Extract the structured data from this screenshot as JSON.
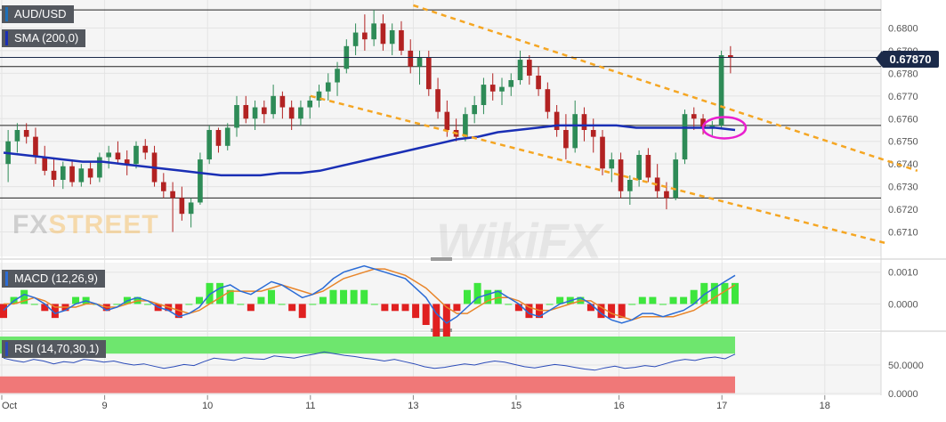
{
  "chart_data": [
    {
      "type": "candlestick",
      "title": "AUD/USD",
      "indicator": "SMA (200,0)",
      "current_price": "0.67870",
      "ylim": [
        0.67,
        0.681
      ],
      "yticks": [
        "0.6800",
        "0.6790",
        "0.6780",
        "0.6770",
        "0.6760",
        "0.6750",
        "0.6740",
        "0.6730",
        "0.6720",
        "0.6710"
      ],
      "x_tick_labels": [
        "Oct",
        "9",
        "10",
        "11",
        "13",
        "15",
        "16",
        "17",
        "18"
      ],
      "x_tick_days": [
        8,
        9,
        10,
        11,
        12,
        13,
        14,
        15,
        16
      ],
      "candles": [
        [
          0.674,
          0.6755,
          0.6732,
          0.675
        ],
        [
          0.675,
          0.6758,
          0.6745,
          0.6755
        ],
        [
          0.6755,
          0.6758,
          0.6749,
          0.6752
        ],
        [
          0.6752,
          0.6756,
          0.674,
          0.6743
        ],
        [
          0.6743,
          0.6748,
          0.6735,
          0.6737
        ],
        [
          0.6737,
          0.6742,
          0.673,
          0.6733
        ],
        [
          0.6733,
          0.6741,
          0.6729,
          0.6739
        ],
        [
          0.6739,
          0.6742,
          0.673,
          0.6732
        ],
        [
          0.6732,
          0.674,
          0.673,
          0.6738
        ],
        [
          0.6738,
          0.6741,
          0.6731,
          0.6734
        ],
        [
          0.6734,
          0.6745,
          0.6732,
          0.6743
        ],
        [
          0.6743,
          0.6748,
          0.6738,
          0.6745
        ],
        [
          0.6745,
          0.675,
          0.674,
          0.6742
        ],
        [
          0.6742,
          0.6746,
          0.6735,
          0.674
        ],
        [
          0.674,
          0.675,
          0.6738,
          0.6748
        ],
        [
          0.6748,
          0.6751,
          0.6742,
          0.6745
        ],
        [
          0.6745,
          0.6748,
          0.673,
          0.6732
        ],
        [
          0.6732,
          0.6736,
          0.6725,
          0.6728
        ],
        [
          0.6728,
          0.6732,
          0.671,
          0.6725
        ],
        [
          0.6725,
          0.673,
          0.6715,
          0.6718
        ],
        [
          0.6718,
          0.6725,
          0.6712,
          0.6723
        ],
        [
          0.6723,
          0.6745,
          0.6722,
          0.6742
        ],
        [
          0.6742,
          0.6757,
          0.674,
          0.6755
        ],
        [
          0.6755,
          0.6756,
          0.6745,
          0.6748
        ],
        [
          0.6748,
          0.6758,
          0.6746,
          0.6756
        ],
        [
          0.6756,
          0.677,
          0.6752,
          0.6766
        ],
        [
          0.6766,
          0.677,
          0.6758,
          0.676
        ],
        [
          0.676,
          0.6768,
          0.6755,
          0.6765
        ],
        [
          0.6765,
          0.6768,
          0.6758,
          0.6762
        ],
        [
          0.6762,
          0.6775,
          0.676,
          0.677
        ],
        [
          0.677,
          0.6772,
          0.676,
          0.6765
        ],
        [
          0.6765,
          0.6768,
          0.6755,
          0.676
        ],
        [
          0.676,
          0.6768,
          0.6757,
          0.6765
        ],
        [
          0.6765,
          0.677,
          0.676,
          0.6768
        ],
        [
          0.6768,
          0.6775,
          0.6765,
          0.6772
        ],
        [
          0.6772,
          0.678,
          0.6768,
          0.6776
        ],
        [
          0.6776,
          0.6785,
          0.677,
          0.6782
        ],
        [
          0.6782,
          0.6795,
          0.678,
          0.6792
        ],
        [
          0.6792,
          0.6802,
          0.6788,
          0.6798
        ],
        [
          0.6798,
          0.6806,
          0.679,
          0.6795
        ],
        [
          0.6795,
          0.6808,
          0.6792,
          0.6802
        ],
        [
          0.6802,
          0.6806,
          0.679,
          0.6793
        ],
        [
          0.6793,
          0.6802,
          0.6788,
          0.6799
        ],
        [
          0.6799,
          0.6803,
          0.6788,
          0.679
        ],
        [
          0.679,
          0.6795,
          0.678,
          0.6783
        ],
        [
          0.6783,
          0.679,
          0.6775,
          0.6787
        ],
        [
          0.6787,
          0.679,
          0.677,
          0.6773
        ],
        [
          0.6773,
          0.6778,
          0.676,
          0.6763
        ],
        [
          0.6763,
          0.6768,
          0.6752,
          0.6755
        ],
        [
          0.6755,
          0.676,
          0.675,
          0.6752
        ],
        [
          0.6752,
          0.6765,
          0.675,
          0.6762
        ],
        [
          0.6762,
          0.677,
          0.6758,
          0.6766
        ],
        [
          0.6766,
          0.6778,
          0.6762,
          0.6775
        ],
        [
          0.6775,
          0.678,
          0.6768,
          0.6772
        ],
        [
          0.6772,
          0.6778,
          0.6766,
          0.6774
        ],
        [
          0.6774,
          0.678,
          0.677,
          0.6777
        ],
        [
          0.6777,
          0.679,
          0.6775,
          0.6786
        ],
        [
          0.6786,
          0.6788,
          0.6775,
          0.6779
        ],
        [
          0.6779,
          0.6783,
          0.677,
          0.6773
        ],
        [
          0.6773,
          0.6776,
          0.676,
          0.6763
        ],
        [
          0.6763,
          0.6766,
          0.6752,
          0.6755
        ],
        [
          0.6755,
          0.6762,
          0.6742,
          0.6747
        ],
        [
          0.6747,
          0.6768,
          0.6745,
          0.6762
        ],
        [
          0.6762,
          0.6765,
          0.675,
          0.6755
        ],
        [
          0.6755,
          0.676,
          0.6745,
          0.6752
        ],
        [
          0.6752,
          0.6755,
          0.6735,
          0.6738
        ],
        [
          0.6738,
          0.6745,
          0.6732,
          0.6742
        ],
        [
          0.6742,
          0.6745,
          0.6725,
          0.6728
        ],
        [
          0.6728,
          0.6735,
          0.6722,
          0.6733
        ],
        [
          0.6733,
          0.6746,
          0.673,
          0.6744
        ],
        [
          0.6744,
          0.6747,
          0.6732,
          0.6734
        ],
        [
          0.6734,
          0.674,
          0.6725,
          0.6728
        ],
        [
          0.6728,
          0.6732,
          0.672,
          0.6725
        ],
        [
          0.6725,
          0.6745,
          0.6724,
          0.6742
        ],
        [
          0.6742,
          0.6764,
          0.674,
          0.6762
        ],
        [
          0.6762,
          0.6765,
          0.6755,
          0.676
        ],
        [
          0.676,
          0.6762,
          0.6753,
          0.6756
        ],
        [
          0.6756,
          0.6759,
          0.6752,
          0.6757
        ],
        [
          0.6757,
          0.679,
          0.6756,
          0.6788
        ],
        [
          0.6788,
          0.6792,
          0.678,
          0.6787
        ]
      ],
      "sma_200": [
        0.6745,
        0.6744,
        0.6743,
        0.6742,
        0.6741,
        0.6741,
        0.674,
        0.6739,
        0.6738,
        0.6737,
        0.6736,
        0.6735,
        0.6735,
        0.6735,
        0.6736,
        0.6736,
        0.6737,
        0.6739,
        0.6741,
        0.6743,
        0.6745,
        0.6747,
        0.6749,
        0.6751,
        0.6752,
        0.6754,
        0.6755,
        0.6756,
        0.6757,
        0.6757,
        0.6757,
        0.6757,
        0.6756,
        0.6756,
        0.6756,
        0.6756,
        0.6756,
        0.6755
      ],
      "channel_upper": [
        [
          12.0,
          0.681
        ],
        [
          16.9,
          0.6737
        ]
      ],
      "channel_lower": [
        [
          11.0,
          0.677
        ],
        [
          16.6,
          0.6705
        ]
      ],
      "horizontal_levels": [
        0.6808,
        0.6787,
        0.6783,
        0.6757,
        0.6725
      ]
    },
    {
      "type": "line",
      "title": "MACD (12,26,9)",
      "ylim": [
        -0.0008,
        0.0013
      ],
      "yticks": [
        "0.0010",
        "0.0000"
      ],
      "macd": [
        -0.0002,
        0.0001,
        0.0003,
        0.0002,
        0.0,
        -0.0003,
        -0.0002,
        0.0,
        0.0001,
        0.0,
        -0.0002,
        -0.0001,
        0.0001,
        0.0002,
        0.0001,
        -0.0001,
        -0.0002,
        -0.0004,
        -0.0003,
        -0.0001,
        0.0003,
        0.0005,
        0.0006,
        0.0004,
        0.0003,
        0.0005,
        0.0007,
        0.0006,
        0.0004,
        0.0002,
        0.0003,
        0.0005,
        0.0008,
        0.001,
        0.0011,
        0.0012,
        0.0011,
        0.001,
        0.0009,
        0.0008,
        0.0005,
        0.0002,
        -0.0003,
        -0.0006,
        -0.0004,
        -0.0001,
        0.0002,
        0.0003,
        0.0004,
        0.0002,
        0.0,
        -0.0003,
        -0.0004,
        -0.0002,
        0.0,
        0.0001,
        0.0002,
        0.0,
        -0.0003,
        -0.0005,
        -0.0006,
        -0.0005,
        -0.0003,
        -0.0003,
        -0.0004,
        -0.0003,
        -0.0002,
        0.0,
        0.0003,
        0.0005,
        0.0007,
        0.0009
      ],
      "signal": [
        0.0,
        0.0,
        0.0001,
        0.0002,
        0.0001,
        -0.0001,
        -0.0001,
        -0.0001,
        0.0,
        0.0,
        -0.0001,
        -0.0001,
        0.0,
        0.0001,
        0.0001,
        0.0,
        -0.0001,
        -0.0002,
        -0.0003,
        -0.0002,
        0.0,
        0.0002,
        0.0004,
        0.0004,
        0.0004,
        0.0004,
        0.0005,
        0.0006,
        0.0005,
        0.0004,
        0.0003,
        0.0004,
        0.0006,
        0.0008,
        0.0009,
        0.001,
        0.0011,
        0.0011,
        0.001,
        0.0009,
        0.0007,
        0.0005,
        0.0002,
        -0.0001,
        -0.0003,
        -0.0003,
        -0.0001,
        0.0001,
        0.0002,
        0.0002,
        0.0001,
        -0.0001,
        -0.0002,
        -0.0002,
        -0.0001,
        0.0,
        0.0001,
        0.0001,
        -0.0001,
        -0.0003,
        -0.0004,
        -0.0005,
        -0.0004,
        -0.0004,
        -0.0004,
        -0.0004,
        -0.0003,
        -0.0002,
        0.0,
        0.0002,
        0.0004,
        0.0006
      ]
    },
    {
      "type": "line",
      "title": "RSI (14,70,30,1)",
      "ylim": [
        0,
        100
      ],
      "yticks": [
        "50.0000",
        "0.0000"
      ],
      "levels": [
        70,
        30
      ],
      "rsi": [
        62,
        58,
        55,
        60,
        57,
        52,
        56,
        54,
        60,
        58,
        55,
        57,
        53,
        50,
        52,
        48,
        44,
        47,
        51,
        49,
        56,
        62,
        60,
        58,
        63,
        61,
        60,
        66,
        64,
        62,
        66,
        69,
        73,
        70,
        67,
        65,
        62,
        60,
        57,
        60,
        56,
        52,
        47,
        44,
        46,
        49,
        52,
        50,
        54,
        57,
        55,
        51,
        47,
        45,
        48,
        51,
        49,
        46,
        43,
        41,
        45,
        48,
        44,
        46,
        49,
        47,
        52,
        57,
        60,
        58,
        62,
        64,
        61,
        69
      ]
    }
  ],
  "watermarks": {
    "fxstreet_fx": "FX",
    "fxstreet_street": "STREET",
    "wikifx": "WikiFX"
  },
  "colors": {
    "bull": "#2e8b57",
    "bear": "#b22222",
    "sma": "#1a2fb5",
    "channel": "#f5a623",
    "highlight": "#e91fcf",
    "macd": "#2b6cd6",
    "signal": "#e8852a",
    "hist_pos": "#3ee63e",
    "hist_neg": "#e02020",
    "rsi": "#2b4bb8",
    "rsi_overbought": "#6ee66e",
    "rsi_oversold": "#f07878"
  }
}
